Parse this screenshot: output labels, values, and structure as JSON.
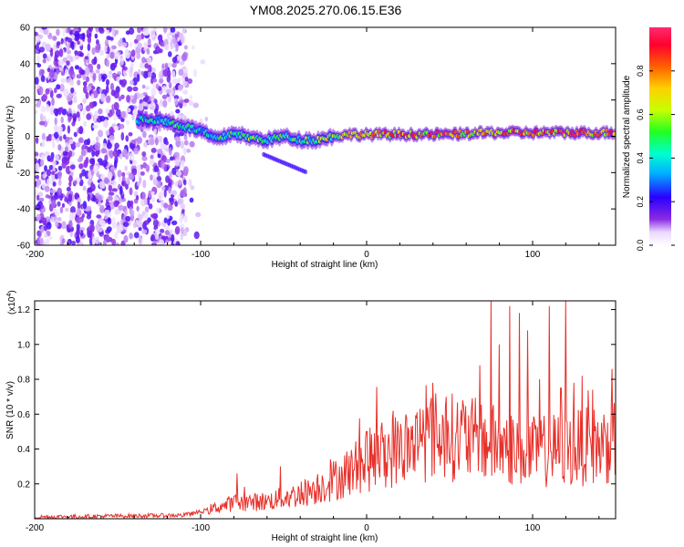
{
  "title": "YM08.2025.270.06.15.E36",
  "chart_data": [
    {
      "type": "heatmap",
      "xlabel": "Height of straight line (km)",
      "ylabel": "Frequency (Hz)",
      "xlim": [
        -200,
        150
      ],
      "ylim": [
        -60,
        60
      ],
      "xticks": [
        -200,
        -100,
        0,
        100
      ],
      "yticks": [
        -60,
        -40,
        -20,
        0,
        20,
        40,
        60
      ],
      "colorbar": {
        "label": "Normalized spectral amplitude",
        "range": [
          0,
          1
        ],
        "ticks": [
          0.0,
          0.2,
          0.4,
          0.6,
          0.8
        ]
      },
      "noise_region_km": [
        -200,
        -108
      ],
      "signal_trace": {
        "description_points_km": [
          -138,
          -125,
          -112,
          -100,
          -90,
          -80,
          -70,
          -60,
          -50,
          -40,
          -30,
          -20,
          -10,
          0,
          25,
          50,
          75,
          100,
          125,
          150
        ],
        "frequency_hz": [
          9,
          9,
          6,
          3,
          -2,
          2,
          -1,
          -2,
          0,
          -2,
          -2,
          0,
          1,
          1,
          1,
          1,
          2,
          2,
          2,
          2
        ],
        "peak_amplitude": [
          0.5,
          0.55,
          0.6,
          0.5,
          0.6,
          0.6,
          0.65,
          0.6,
          0.6,
          0.6,
          0.65,
          0.75,
          0.8,
          0.9,
          0.95,
          1.0,
          0.95,
          1.0,
          1.0,
          0.95
        ]
      }
    },
    {
      "type": "line",
      "xlabel": "Height of straight line (km)",
      "ylabel": "SNR (10 * v/v)",
      "y_multiplier": "(x10",
      "y_multiplier_exp": "4",
      "y_multiplier_close": ")",
      "xlim": [
        -200,
        150
      ],
      "ylim": [
        0,
        1.25
      ],
      "xticks": [
        -200,
        -100,
        0,
        100
      ],
      "yticks": [
        0.2,
        0.4,
        0.6,
        0.8,
        1.0,
        1.2
      ],
      "ytick_labels": [
        "0.2",
        "0.4",
        "0.6",
        "0.8",
        "1.0",
        "1.2"
      ],
      "series": [
        {
          "name": "SNR",
          "color": "#e8302a",
          "trend_x": [
            -200,
            -110,
            -100,
            -80,
            -60,
            -40,
            -20,
            0,
            10,
            20,
            30,
            40,
            60,
            80,
            100,
            120,
            140,
            150
          ],
          "trend_y": [
            0.01,
            0.02,
            0.04,
            0.09,
            0.1,
            0.14,
            0.22,
            0.33,
            0.37,
            0.4,
            0.44,
            0.48,
            0.46,
            0.42,
            0.38,
            0.4,
            0.42,
            0.44
          ],
          "spikes_x": [
            -78,
            -52,
            -22,
            0,
            16,
            32,
            40,
            48,
            58,
            68,
            75,
            80,
            86,
            92,
            97,
            104,
            110,
            117,
            120,
            125,
            130,
            136,
            145,
            148
          ],
          "spikes_y": [
            0.26,
            0.3,
            0.34,
            0.5,
            0.62,
            0.63,
            0.78,
            0.7,
            0.68,
            0.88,
            1.25,
            1.0,
            1.22,
            1.18,
            1.08,
            0.8,
            1.22,
            0.75,
            1.25,
            0.78,
            0.82,
            0.74,
            0.55,
            0.86
          ]
        }
      ]
    }
  ]
}
